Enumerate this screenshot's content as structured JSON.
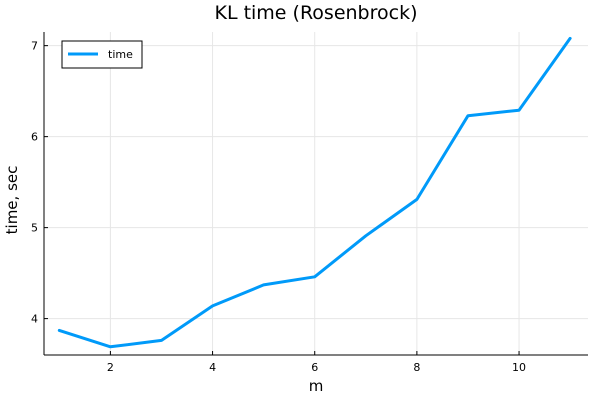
{
  "chart_data": {
    "type": "line",
    "title": "KL time (Rosenbrock)",
    "xlabel": "m",
    "ylabel": "time, sec",
    "xlim": [
      0.7,
      11.35
    ],
    "ylim": [
      3.6,
      7.15
    ],
    "xticks": [
      2,
      4,
      6,
      8,
      10
    ],
    "yticks": [
      4,
      5,
      6,
      7
    ],
    "grid": true,
    "legend": "top-left",
    "series": [
      {
        "name": "time",
        "color": "#009af9",
        "x": [
          1,
          2,
          3,
          4,
          5,
          6,
          7,
          8,
          9,
          10,
          11
        ],
        "y": [
          3.87,
          3.69,
          3.76,
          4.14,
          4.37,
          4.46,
          4.91,
          5.31,
          6.23,
          6.29,
          7.08
        ]
      }
    ]
  }
}
